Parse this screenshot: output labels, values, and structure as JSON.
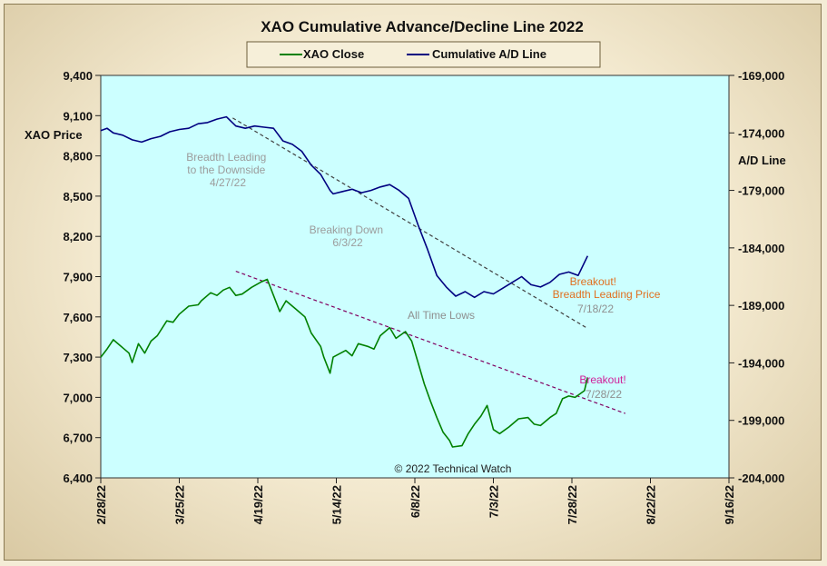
{
  "chart_data": {
    "type": "line",
    "title": "XAO Cumulative Advance/Decline Line 2022",
    "y_left_label": "XAO Price",
    "y_right_label": "A/D Line",
    "y_left_ticks": [
      "9,400",
      "9,100",
      "8,800",
      "8,500",
      "8,200",
      "7,900",
      "7,600",
      "7,300",
      "7,000",
      "6,700",
      "6,400"
    ],
    "y_right_ticks": [
      "-169,000",
      "-174,000",
      "-179,000",
      "-184,000",
      "-189,000",
      "-194,000",
      "-199,000",
      "-204,000"
    ],
    "x_ticks": [
      "2/28/22",
      "3/25/22",
      "4/19/22",
      "5/14/22",
      "6/8/22",
      "7/3/22",
      "7/28/22",
      "8/22/22",
      "9/16/22"
    ],
    "ylim_left": [
      6400,
      9400
    ],
    "ylim_right": [
      -204000,
      -169000
    ],
    "xlim": [
      "2022-02-28",
      "2022-09-16"
    ],
    "grid": false,
    "legend_position": "top-center",
    "background_color": "#ccffff",
    "series": [
      {
        "name": "XAO Close",
        "axis": "left",
        "color": "#008000",
        "points": [
          [
            "2022-02-28",
            7300
          ],
          [
            "2022-03-02",
            7360
          ],
          [
            "2022-03-04",
            7430
          ],
          [
            "2022-03-07",
            7370
          ],
          [
            "2022-03-09",
            7330
          ],
          [
            "2022-03-10",
            7260
          ],
          [
            "2022-03-12",
            7400
          ],
          [
            "2022-03-14",
            7330
          ],
          [
            "2022-03-16",
            7420
          ],
          [
            "2022-03-18",
            7460
          ],
          [
            "2022-03-21",
            7570
          ],
          [
            "2022-03-23",
            7560
          ],
          [
            "2022-03-25",
            7620
          ],
          [
            "2022-03-28",
            7680
          ],
          [
            "2022-03-31",
            7690
          ],
          [
            "2022-04-01",
            7720
          ],
          [
            "2022-04-04",
            7780
          ],
          [
            "2022-04-06",
            7760
          ],
          [
            "2022-04-08",
            7800
          ],
          [
            "2022-04-10",
            7820
          ],
          [
            "2022-04-12",
            7760
          ],
          [
            "2022-04-14",
            7770
          ],
          [
            "2022-04-17",
            7820
          ],
          [
            "2022-04-20",
            7860
          ],
          [
            "2022-04-22",
            7880
          ],
          [
            "2022-04-24",
            7760
          ],
          [
            "2022-04-26",
            7640
          ],
          [
            "2022-04-28",
            7720
          ],
          [
            "2022-05-01",
            7660
          ],
          [
            "2022-05-04",
            7600
          ],
          [
            "2022-05-06",
            7480
          ],
          [
            "2022-05-09",
            7380
          ],
          [
            "2022-05-10",
            7300
          ],
          [
            "2022-05-12",
            7180
          ],
          [
            "2022-05-13",
            7300
          ],
          [
            "2022-05-17",
            7350
          ],
          [
            "2022-05-19",
            7310
          ],
          [
            "2022-05-21",
            7400
          ],
          [
            "2022-05-24",
            7380
          ],
          [
            "2022-05-26",
            7360
          ],
          [
            "2022-05-28",
            7460
          ],
          [
            "2022-05-31",
            7520
          ],
          [
            "2022-06-02",
            7440
          ],
          [
            "2022-06-05",
            7490
          ],
          [
            "2022-06-07",
            7420
          ],
          [
            "2022-06-09",
            7260
          ],
          [
            "2022-06-11",
            7100
          ],
          [
            "2022-06-13",
            6970
          ],
          [
            "2022-06-15",
            6850
          ],
          [
            "2022-06-17",
            6740
          ],
          [
            "2022-06-19",
            6680
          ],
          [
            "2022-06-20",
            6630
          ],
          [
            "2022-06-23",
            6640
          ],
          [
            "2022-06-25",
            6730
          ],
          [
            "2022-06-27",
            6800
          ],
          [
            "2022-06-29",
            6860
          ],
          [
            "2022-07-01",
            6940
          ],
          [
            "2022-07-03",
            6760
          ],
          [
            "2022-07-05",
            6730
          ],
          [
            "2022-07-08",
            6780
          ],
          [
            "2022-07-11",
            6840
          ],
          [
            "2022-07-14",
            6850
          ],
          [
            "2022-07-16",
            6800
          ],
          [
            "2022-07-18",
            6790
          ],
          [
            "2022-07-21",
            6850
          ],
          [
            "2022-07-23",
            6880
          ],
          [
            "2022-07-25",
            6990
          ],
          [
            "2022-07-27",
            7010
          ],
          [
            "2022-07-29",
            7000
          ],
          [
            "2022-08-01",
            7050
          ],
          [
            "2022-08-02",
            7150
          ]
        ]
      },
      {
        "name": "Cumulative A/D Line",
        "axis": "right",
        "color": "#000080",
        "points": [
          [
            "2022-02-28",
            -173800
          ],
          [
            "2022-03-02",
            -173600
          ],
          [
            "2022-03-04",
            -174000
          ],
          [
            "2022-03-07",
            -174200
          ],
          [
            "2022-03-10",
            -174600
          ],
          [
            "2022-03-13",
            -174800
          ],
          [
            "2022-03-16",
            -174500
          ],
          [
            "2022-03-19",
            -174300
          ],
          [
            "2022-03-22",
            -173900
          ],
          [
            "2022-03-25",
            -173700
          ],
          [
            "2022-03-28",
            -173600
          ],
          [
            "2022-03-31",
            -173200
          ],
          [
            "2022-04-03",
            -173100
          ],
          [
            "2022-04-06",
            -172800
          ],
          [
            "2022-04-09",
            -172600
          ],
          [
            "2022-04-12",
            -173400
          ],
          [
            "2022-04-15",
            -173600
          ],
          [
            "2022-04-18",
            -173400
          ],
          [
            "2022-04-21",
            -173500
          ],
          [
            "2022-04-24",
            -173600
          ],
          [
            "2022-04-27",
            -174700
          ],
          [
            "2022-04-30",
            -175000
          ],
          [
            "2022-05-03",
            -175600
          ],
          [
            "2022-05-06",
            -176800
          ],
          [
            "2022-05-09",
            -177600
          ],
          [
            "2022-05-12",
            -179000
          ],
          [
            "2022-05-13",
            -179300
          ],
          [
            "2022-05-16",
            -179100
          ],
          [
            "2022-05-19",
            -178900
          ],
          [
            "2022-05-22",
            -179200
          ],
          [
            "2022-05-25",
            -179000
          ],
          [
            "2022-05-28",
            -178700
          ],
          [
            "2022-05-31",
            -178500
          ],
          [
            "2022-06-03",
            -179000
          ],
          [
            "2022-06-06",
            -179700
          ],
          [
            "2022-06-09",
            -182000
          ],
          [
            "2022-06-12",
            -184100
          ],
          [
            "2022-06-15",
            -186400
          ],
          [
            "2022-06-18",
            -187400
          ],
          [
            "2022-06-21",
            -188200
          ],
          [
            "2022-06-24",
            -187800
          ],
          [
            "2022-06-27",
            -188300
          ],
          [
            "2022-06-30",
            -187800
          ],
          [
            "2022-07-03",
            -188000
          ],
          [
            "2022-07-06",
            -187500
          ],
          [
            "2022-07-09",
            -187000
          ],
          [
            "2022-07-12",
            -186500
          ],
          [
            "2022-07-15",
            -187200
          ],
          [
            "2022-07-18",
            -187400
          ],
          [
            "2022-07-21",
            -187000
          ],
          [
            "2022-07-24",
            -186300
          ],
          [
            "2022-07-27",
            -186100
          ],
          [
            "2022-07-30",
            -186400
          ],
          [
            "2022-08-02",
            -184700
          ]
        ]
      }
    ],
    "trendlines": [
      {
        "axis": "right",
        "color": "#404040",
        "start": [
          "2022-04-11",
          -172700
        ],
        "end": [
          "2022-08-02",
          -191000
        ]
      },
      {
        "axis": "left",
        "color": "#800060",
        "start": [
          "2022-04-12",
          7940
        ],
        "end": [
          "2022-08-14",
          6880
        ]
      }
    ],
    "annotations": [
      {
        "lines": [
          "Breadth Leading",
          "to the Downside",
          "4/27/22"
        ],
        "color": "#9c9c9c"
      },
      {
        "lines": [
          "Breaking  Down",
          "6/3/22"
        ],
        "color": "#9c9c9c"
      },
      {
        "lines": [
          "All Time Lows"
        ],
        "color": "#8f8f8f"
      },
      {
        "lines": [
          "Breakout!",
          "Breadth Leading  Price"
        ],
        "color": "#e07020"
      },
      {
        "lines": [
          "7/18/22"
        ],
        "color": "#8f8f8f"
      },
      {
        "lines": [
          "Breakout!"
        ],
        "color": "#d0209a"
      },
      {
        "lines": [
          "7/28/22"
        ],
        "color": "#8f8f8f"
      }
    ],
    "copyright": "© 2022 Technical  Watch"
  }
}
